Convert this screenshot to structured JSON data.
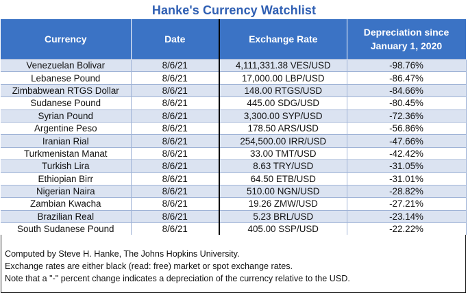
{
  "title": "Hanke's Currency Watchlist",
  "table": {
    "headers": {
      "currency": "Currency",
      "date": "Date",
      "rate": "Exchange Rate",
      "dep_line1": "Depreciation since",
      "dep_line2": "January 1, 2020"
    },
    "rows": [
      {
        "currency": "Venezuelan Bolivar",
        "date": "8/6/21",
        "rate": "4,111,331.38 VES/USD",
        "dep": "-98.76%"
      },
      {
        "currency": "Lebanese Pound",
        "date": "8/6/21",
        "rate": "17,000.00 LBP/USD",
        "dep": "-86.47%"
      },
      {
        "currency": "Zimbabwean RTGS Dollar",
        "date": "8/6/21",
        "rate": "148.00 RTGS/USD",
        "dep": "-84.66%"
      },
      {
        "currency": "Sudanese Pound",
        "date": "8/6/21",
        "rate": "445.00 SDG/USD",
        "dep": "-80.45%"
      },
      {
        "currency": "Syrian Pound",
        "date": "8/6/21",
        "rate": "3,300.00 SYP/USD",
        "dep": "-72.36%"
      },
      {
        "currency": "Argentine Peso",
        "date": "8/6/21",
        "rate": "178.50 ARS/USD",
        "dep": "-56.86%"
      },
      {
        "currency": "Iranian Rial",
        "date": "8/6/21",
        "rate": "254,500.00 IRR/USD",
        "dep": "-47.66%"
      },
      {
        "currency": "Turkmenistan Manat",
        "date": "8/6/21",
        "rate": "33.00 TMT/USD",
        "dep": "-42.42%"
      },
      {
        "currency": "Turkish Lira",
        "date": "8/6/21",
        "rate": "8.63 TRY/USD",
        "dep": "-31.05%"
      },
      {
        "currency": "Ethiopian Birr",
        "date": "8/6/21",
        "rate": "64.50 ETB/USD",
        "dep": "-31.01%"
      },
      {
        "currency": "Nigerian Naira",
        "date": "8/6/21",
        "rate": "510.00 NGN/USD",
        "dep": "-28.82%"
      },
      {
        "currency": "Zambian Kwacha",
        "date": "8/6/21",
        "rate": "19.26 ZMW/USD",
        "dep": "-27.21%"
      },
      {
        "currency": "Brazilian Real",
        "date": "8/6/21",
        "rate": "5.23 BRL/USD",
        "dep": "-23.14%"
      },
      {
        "currency": "South Sudanese Pound",
        "date": "8/6/21",
        "rate": "405.00 SSP/USD",
        "dep": "-22.22%"
      }
    ]
  },
  "notes": [
    "Computed by Steve H. Hanke, The Johns Hopkins University.",
    "Exchange rates are either black (read: free) market or spot exchange rates.",
    "Note that a \"-\" percent change indicates a depreciation of the currency relative to the USD."
  ],
  "colors": {
    "title": "#2f5fb3",
    "header_bg": "#3b73c5",
    "row_alt_bg": "#dbe3f1"
  }
}
